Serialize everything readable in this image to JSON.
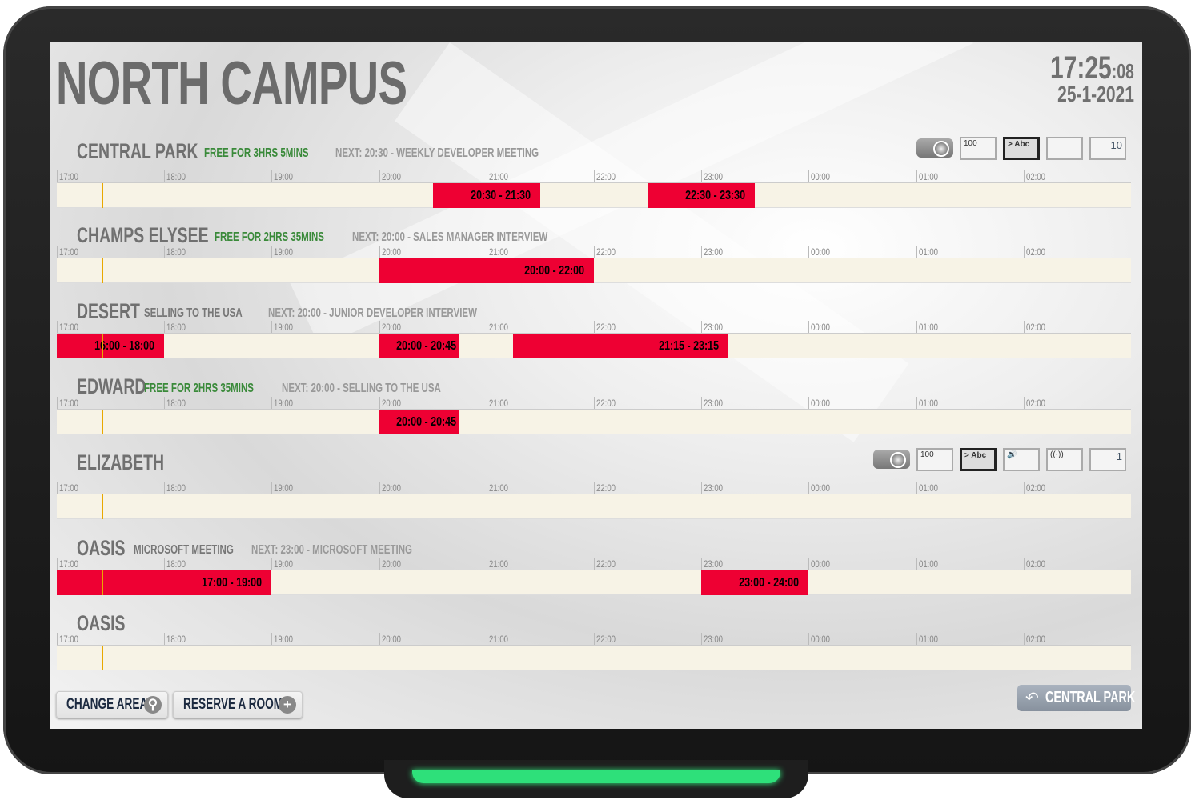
{
  "header": {
    "title": "NORTH CAMPUS",
    "time": "17:25",
    "seconds": ":08",
    "date": "25-1-2021"
  },
  "timeline": {
    "start_hour": 17,
    "hours": [
      "17:00",
      "18:00",
      "19:00",
      "20:00",
      "21:00",
      "22:00",
      "23:00",
      "00:00",
      "01:00",
      "02:00"
    ],
    "now": "17:25"
  },
  "colors": {
    "busy": "#ee0033",
    "free_text": "#3a8a3a",
    "track": "#f7f3e6",
    "now_line": "#e8a800"
  },
  "rooms": [
    {
      "name": "CENTRAL PARK",
      "status": "FREE FOR 3HRS 5MINS",
      "status_type": "free",
      "next": "NEXT: 20:30 - WEEKLY DEVELOPER MEETING",
      "events": [
        {
          "label": "20:30 - 21:30",
          "start": 20.5,
          "end": 21.5
        },
        {
          "label": "22:30 - 23:30",
          "start": 22.5,
          "end": 23.5
        }
      ],
      "facilities": [
        {
          "icon": "projector-icon",
          "text": ""
        },
        {
          "icon": "whiteboard-icon",
          "text": "100"
        },
        {
          "icon": "display-icon",
          "text": "> Abc"
        },
        {
          "icon": "video-camera-icon",
          "text": ""
        },
        {
          "icon": "capacity-icon",
          "text": "10"
        }
      ]
    },
    {
      "name": "CHAMPS ELYSEE",
      "status": "FREE FOR 2HRS 35MINS",
      "status_type": "free",
      "next": "NEXT: 20:00 - SALES MANAGER INTERVIEW",
      "events": [
        {
          "label": "20:00 - 22:00",
          "start": 20,
          "end": 22
        }
      ]
    },
    {
      "name": "DESERT",
      "status": "SELLING TO THE USA",
      "status_type": "busy",
      "next": "NEXT: 20:00 - JUNIOR DEVELOPER INTERVIEW",
      "events": [
        {
          "label": "16:00 - 18:00",
          "start": 16,
          "end": 18
        },
        {
          "label": "20:00 - 20:45",
          "start": 20,
          "end": 20.75
        },
        {
          "label": "21:15 - 23:15",
          "start": 21.25,
          "end": 23.25
        }
      ]
    },
    {
      "name": "EDWARD",
      "status": "FREE FOR 2HRS 35MINS",
      "status_type": "free",
      "next": "NEXT: 20:00 - SELLING TO THE USA",
      "events": [
        {
          "label": "20:00 - 20:45",
          "start": 20,
          "end": 20.75
        }
      ]
    },
    {
      "name": "ELIZABETH",
      "status": "",
      "status_type": "free",
      "next": "",
      "events": [],
      "facilities": [
        {
          "icon": "projector-icon",
          "text": ""
        },
        {
          "icon": "whiteboard-icon",
          "text": "100"
        },
        {
          "icon": "display-icon",
          "text": "> Abc"
        },
        {
          "icon": "speaker-icon",
          "text": "🔊"
        },
        {
          "icon": "wifi-icon",
          "text": "((·))"
        },
        {
          "icon": "capacity-icon",
          "text": "1"
        }
      ]
    },
    {
      "name": "OASIS",
      "status": "MICROSOFT MEETING",
      "status_type": "busy",
      "next": "NEXT: 23:00 - MICROSOFT MEETING",
      "events": [
        {
          "label": "17:00 - 19:00",
          "start": 17,
          "end": 19
        },
        {
          "label": "23:00 - 24:00",
          "start": 23,
          "end": 24
        }
      ]
    },
    {
      "name": "OASIS",
      "status": "",
      "status_type": "free",
      "next": "",
      "events": []
    }
  ],
  "footer": {
    "change_area": "CHANGE AREA",
    "reserve": "RESERVE A ROOM",
    "back": "CENTRAL PARK"
  }
}
